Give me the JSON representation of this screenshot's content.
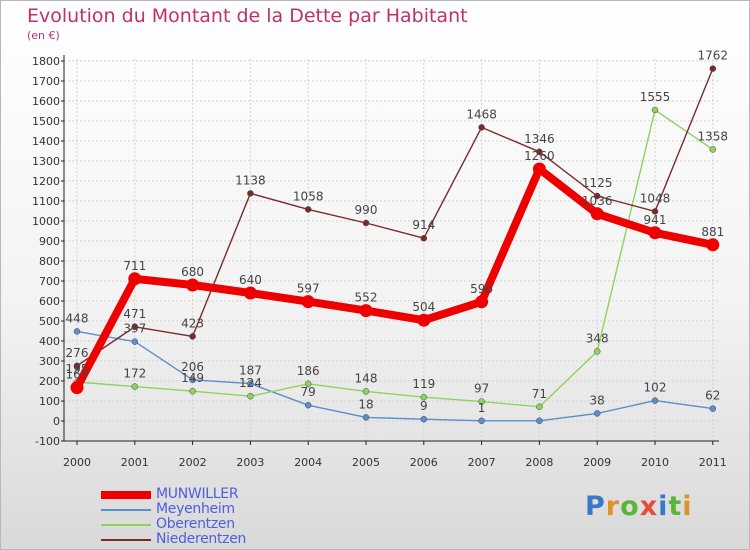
{
  "title": "Evolution du Montant de la Dette par Habitant",
  "subtitle": "(en €)",
  "brand": {
    "name": "Proxiti",
    "letter_colors": [
      "#3a79c9",
      "#e0922a",
      "#5bb536",
      "#e94b3a",
      "#3a79c9",
      "#5bb536",
      "#e0922a"
    ]
  },
  "chart_data": {
    "type": "line",
    "x": [
      "2000",
      "2001",
      "2002",
      "2003",
      "2004",
      "2005",
      "2006",
      "2007",
      "2008",
      "2009",
      "2010",
      "2011"
    ],
    "ylim": [
      -100,
      1800
    ],
    "yticks": [
      -100,
      0,
      100,
      200,
      300,
      400,
      500,
      600,
      700,
      800,
      900,
      1000,
      1100,
      1200,
      1300,
      1400,
      1500,
      1600,
      1700,
      1800
    ],
    "grid": true,
    "legend_position": "bottom-left",
    "series": [
      {
        "name": "MUNWILLER",
        "color": "#ee0000",
        "values": [
          167,
          711,
          680,
          640,
          597,
          552,
          504,
          596,
          1260,
          1036,
          941,
          881
        ],
        "labels": [
          "167",
          "711",
          "680",
          "640",
          "597",
          "552",
          "504",
          "596",
          "1260",
          "1036",
          "941",
          "881"
        ]
      },
      {
        "name": "Meyenheim",
        "color": "#5b8fc9",
        "values": [
          448,
          397,
          206,
          187,
          79,
          18,
          9,
          1,
          1,
          38,
          102,
          62
        ],
        "labels": [
          "448",
          "397",
          "206",
          "187",
          "79",
          "18",
          "9",
          "1",
          "",
          "38",
          "102",
          "62"
        ]
      },
      {
        "name": "Oberentzen",
        "color": "#8ed35a",
        "values": [
          195,
          172,
          149,
          124,
          186,
          148,
          119,
          97,
          71,
          348,
          1555,
          1358
        ],
        "labels": [
          "195",
          "172",
          "149",
          "124",
          "186",
          "148",
          "119",
          "97",
          "71",
          "348",
          "1555",
          "1358"
        ]
      },
      {
        "name": "Niederentzen",
        "color": "#7a2a2a",
        "values": [
          276,
          471,
          423,
          1138,
          1058,
          990,
          914,
          1468,
          1346,
          1125,
          1048,
          1762
        ],
        "labels": [
          "276",
          "471",
          "423",
          "1138",
          "1058",
          "990",
          "914",
          "1468",
          "1346",
          "1125",
          "1048",
          "1762"
        ]
      }
    ]
  }
}
